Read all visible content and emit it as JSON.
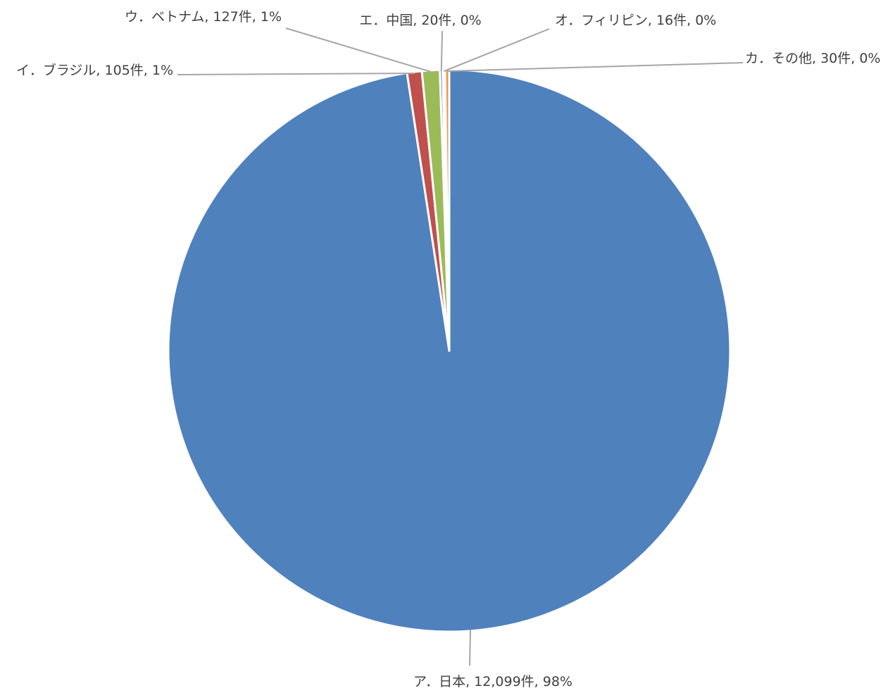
{
  "chart_data": {
    "type": "pie",
    "title": "",
    "start_angle_deg": 0,
    "direction": "clockwise",
    "slices": [
      {
        "label": "ア．日本",
        "value": 12099,
        "display": "ア．日本, 12,099件, 98%",
        "color": "#4f81bd"
      },
      {
        "label": "イ．ブラジル",
        "value": 105,
        "display": "イ．ブラジル, 105件, 1%",
        "color": "#c0504d"
      },
      {
        "label": "ウ．ベトナム",
        "value": 127,
        "display": "ウ．ベトナム, 127件, 1%",
        "color": "#9bbb59"
      },
      {
        "label": "エ．中国",
        "value": 20,
        "display": "エ．中国, 20件, 0%",
        "color": "#8064a2"
      },
      {
        "label": "オ．フィリピン",
        "value": 16,
        "display": "オ．フィリピン, 16件, 0%",
        "color": "#4bacc6"
      },
      {
        "label": "カ．その他",
        "value": 30,
        "display": "カ．その他, 30件, 0%",
        "color": "#f79646"
      }
    ],
    "legend": "none",
    "data_labels": "outside with leader lines"
  }
}
